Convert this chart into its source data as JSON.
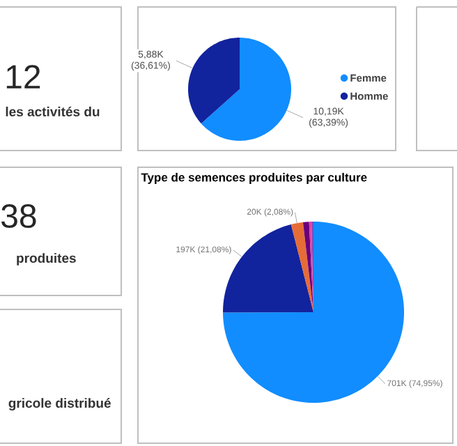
{
  "chart_data": [
    {
      "type": "other",
      "title": "les activités du",
      "annotations": [
        "12"
      ]
    },
    {
      "type": "pie",
      "categories": [
        "Femme",
        "Homme"
      ],
      "values": [
        10190,
        5880
      ],
      "colors": [
        "#118dff",
        "#12239e"
      ],
      "value_labels": [
        "10,19K (63,39%)",
        "5,88K (36,61%)"
      ],
      "legend": "right"
    },
    {
      "type": "other",
      "title": "produites",
      "annotations": [
        "38"
      ]
    },
    {
      "type": "pie",
      "title": "Type de semences produites par culture",
      "categories": [
        null,
        null,
        null,
        null,
        null,
        null
      ],
      "values": [
        701000,
        197000,
        20000,
        10000,
        4000,
        3300
      ],
      "colors": [
        "#118dff",
        "#12239e",
        "#e66c37",
        "#6b007b",
        "#e044a7",
        "#744ec2"
      ],
      "value_labels": [
        "701K (74,95%)",
        "197K (21,08%)",
        "20K (2,08%)",
        null,
        null,
        null
      ]
    },
    {
      "type": "other",
      "title": "gricole distribué"
    }
  ]
}
